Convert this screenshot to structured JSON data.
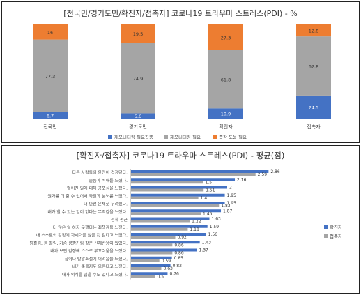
{
  "chart_data": [
    {
      "type": "bar",
      "stacked": true,
      "percent": true,
      "title": "[전국민/경기도민/확진자/접촉자]  코로나19 트라우마 스트레스(PDI) - %",
      "categories": [
        "전국민",
        "경기도민",
        "확진자",
        "접촉자"
      ],
      "series": [
        {
          "name": "재모니터링 필요집중",
          "color": "#4472c4",
          "values": [
            6.7,
            5.6,
            10.9,
            24.5
          ]
        },
        {
          "name": "재모니터링 필요",
          "color": "#a5a5a5",
          "values": [
            77.3,
            74.9,
            61.8,
            62.8
          ]
        },
        {
          "name": "즉각 도움 필요",
          "color": "#ed7d31",
          "values": [
            16,
            19.5,
            27.3,
            12.8
          ]
        }
      ],
      "data_labels": true,
      "legend": "bottom",
      "grid": false
    },
    {
      "type": "bar",
      "orientation": "horizontal",
      "title": "[확진자/접촉자] 코로나19 트라우마 스트레스(PDI) - 평균(점)",
      "categories": [
        "다른 사람들의 안전이 걱정됐다.",
        "슬픔과 비애를 느꼈다.",
        "벌어진 일에 대해 공포심을 느꼈다.",
        "뭔가를 더 할 수 없어서 좌절과 분노를 느꼈다.",
        "내 안전 문제로 두려웠다.",
        "내가 할 수 있는 일이 없다는 무력감을 느꼈다.",
        "전체 평균",
        "더 많은 일 하지 못했다는 죄책감을 느꼈다.",
        "내 스스로의 감정에 자제력을 잃을 것 같다고 느꼈다.",
        "땀흘림, 몸 떨림, 가슴 쿵쾅거림 같은 신체반응이 있었다.",
        "내가 보인 감정에 스스로 부끄러움을 느꼈다.",
        "장이나 방광조절에 어려움을 느꼈다.",
        "내가 죽을지도 모른다고 느꼈다.",
        "내가 의식을 잃을 수도 있다고 느꼈다."
      ],
      "series": [
        {
          "name": "확진자",
          "color": "#4472c4",
          "values": [
            2.86,
            2.16,
            2.0,
            1.95,
            1.95,
            1.87,
            1.63,
            1.59,
            1.56,
            1.43,
            1.37,
            0.85,
            0.82,
            0.76
          ]
        },
        {
          "name": "접촉자",
          "color": "#a5a5a5",
          "values": [
            2.59,
            1.5,
            1.51,
            1.4,
            1.83,
            1.45,
            1.22,
            1.18,
            0.92,
            0.86,
            0.86,
            0.59,
            0.63,
            0.5
          ]
        }
      ],
      "data_labels": true,
      "legend": "right",
      "grid": false
    }
  ]
}
